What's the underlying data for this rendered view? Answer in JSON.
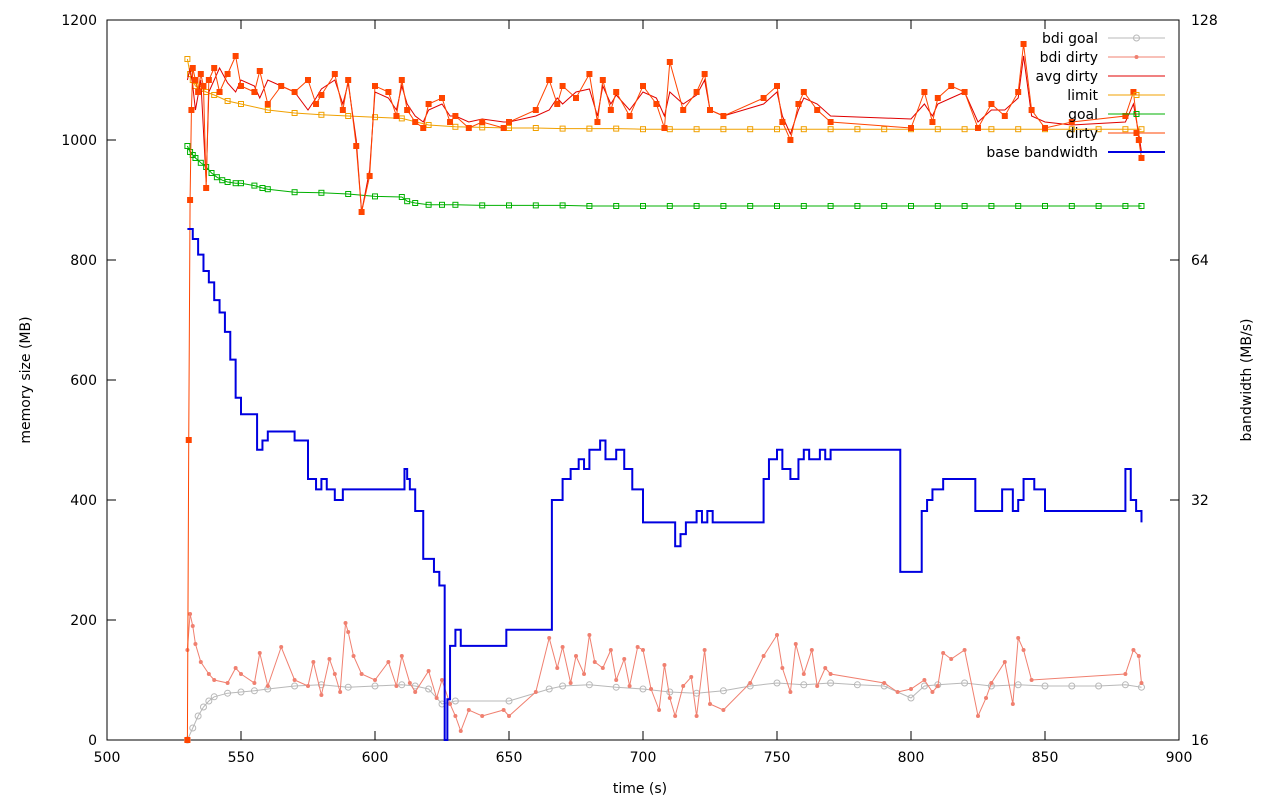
{
  "chart_data": {
    "type": "line",
    "xlabel": "time (s)",
    "ylabel": "memory size (MB)",
    "y2label": "bandwidth (MB/s)",
    "xlim": [
      500,
      900
    ],
    "ylim": [
      0,
      1200
    ],
    "y2lim": [
      16,
      128
    ],
    "y2scale": "log2",
    "xticks": [
      500,
      550,
      600,
      650,
      700,
      750,
      800,
      850,
      900
    ],
    "yticks": [
      0,
      200,
      400,
      600,
      800,
      1000,
      1200
    ],
    "y2ticks": [
      16,
      32,
      64,
      128
    ],
    "legend_position": "top-right",
    "series": [
      {
        "name": "bdi goal",
        "color": "#b8b8b8",
        "marker": "circle",
        "x": [
          530,
          532,
          534,
          536,
          538,
          540,
          545,
          550,
          555,
          560,
          570,
          580,
          590,
          600,
          610,
          615,
          620,
          625,
          630,
          650,
          665,
          670,
          680,
          690,
          700,
          710,
          720,
          730,
          740,
          750,
          760,
          770,
          780,
          790,
          800,
          805,
          810,
          820,
          830,
          840,
          850,
          860,
          870,
          880,
          886
        ],
        "y": [
          0,
          20,
          40,
          55,
          65,
          72,
          78,
          80,
          82,
          85,
          90,
          92,
          88,
          90,
          92,
          90,
          85,
          60,
          65,
          65,
          85,
          90,
          92,
          88,
          85,
          80,
          78,
          82,
          90,
          95,
          92,
          95,
          92,
          90,
          70,
          90,
          92,
          95,
          90,
          92,
          90,
          90,
          90,
          92,
          88
        ]
      },
      {
        "name": "bdi dirty",
        "color": "#f08070",
        "marker": "dot",
        "x": [
          530,
          531,
          532,
          533,
          535,
          538,
          540,
          545,
          548,
          550,
          555,
          557,
          560,
          565,
          570,
          575,
          577,
          580,
          583,
          585,
          587,
          589,
          590,
          592,
          595,
          600,
          605,
          608,
          610,
          613,
          615,
          620,
          623,
          625,
          628,
          630,
          632,
          635,
          640,
          648,
          650,
          660,
          665,
          668,
          670,
          673,
          675,
          678,
          680,
          682,
          685,
          688,
          690,
          693,
          695,
          698,
          700,
          703,
          706,
          708,
          710,
          712,
          715,
          718,
          720,
          723,
          725,
          730,
          740,
          745,
          750,
          752,
          755,
          757,
          760,
          763,
          765,
          768,
          770,
          790,
          795,
          800,
          805,
          808,
          810,
          812,
          815,
          820,
          825,
          828,
          830,
          835,
          838,
          840,
          842,
          845,
          880,
          883,
          885,
          886
        ],
        "y": [
          150,
          210,
          190,
          160,
          130,
          110,
          100,
          95,
          120,
          110,
          95,
          145,
          90,
          155,
          100,
          90,
          130,
          75,
          135,
          110,
          80,
          195,
          180,
          140,
          110,
          100,
          130,
          90,
          140,
          95,
          80,
          115,
          70,
          100,
          60,
          40,
          15,
          50,
          40,
          50,
          40,
          80,
          170,
          120,
          155,
          95,
          140,
          110,
          175,
          130,
          120,
          150,
          100,
          135,
          90,
          155,
          150,
          85,
          50,
          125,
          70,
          40,
          90,
          105,
          40,
          150,
          60,
          50,
          95,
          140,
          175,
          120,
          80,
          160,
          110,
          150,
          90,
          120,
          110,
          95,
          80,
          85,
          100,
          80,
          90,
          145,
          135,
          150,
          40,
          70,
          95,
          130,
          60,
          170,
          150,
          100,
          110,
          150,
          140,
          95
        ]
      },
      {
        "name": "avg dirty",
        "color": "#e00000",
        "marker": "none",
        "x": [
          530,
          531,
          532,
          533,
          535,
          537,
          538,
          540,
          542,
          545,
          548,
          550,
          555,
          557,
          560,
          565,
          570,
          575,
          578,
          580,
          585,
          588,
          590,
          593,
          595,
          598,
          600,
          605,
          608,
          610,
          612,
          615,
          618,
          620,
          625,
          628,
          630,
          635,
          640,
          648,
          650,
          660,
          665,
          668,
          670,
          675,
          680,
          683,
          685,
          688,
          690,
          695,
          700,
          705,
          708,
          710,
          715,
          720,
          723,
          725,
          730,
          745,
          750,
          752,
          755,
          758,
          760,
          765,
          770,
          800,
          805,
          808,
          810,
          815,
          820,
          825,
          830,
          835,
          840,
          842,
          845,
          850,
          860,
          880,
          883,
          885,
          886
        ],
        "y": [
          1100,
          1120,
          1090,
          1050,
          1100,
          930,
          1080,
          1100,
          1120,
          1095,
          1080,
          1100,
          1090,
          1070,
          1100,
          1090,
          1080,
          1050,
          1070,
          1085,
          1100,
          1060,
          1095,
          1000,
          880,
          950,
          1080,
          1070,
          1050,
          1090,
          1060,
          1040,
          1030,
          1050,
          1060,
          1040,
          1040,
          1030,
          1035,
          1030,
          1030,
          1040,
          1050,
          1070,
          1060,
          1080,
          1085,
          1040,
          1090,
          1060,
          1075,
          1050,
          1080,
          1070,
          1040,
          1080,
          1060,
          1075,
          1100,
          1050,
          1040,
          1060,
          1080,
          1040,
          1010,
          1050,
          1070,
          1060,
          1040,
          1035,
          1060,
          1040,
          1060,
          1070,
          1080,
          1030,
          1050,
          1050,
          1070,
          1140,
          1040,
          1030,
          1025,
          1030,
          1060,
          1010,
          980
        ]
      },
      {
        "name": "limit",
        "color": "#f0a000",
        "marker": "square-open",
        "x": [
          530,
          531,
          532,
          533,
          535,
          537,
          540,
          545,
          550,
          560,
          570,
          580,
          590,
          600,
          610,
          620,
          630,
          640,
          650,
          660,
          670,
          680,
          690,
          700,
          710,
          720,
          730,
          740,
          750,
          760,
          770,
          780,
          790,
          800,
          810,
          820,
          830,
          840,
          850,
          860,
          870,
          880,
          886
        ],
        "y": [
          1135,
          1110,
          1100,
          1090,
          1085,
          1080,
          1075,
          1065,
          1060,
          1050,
          1045,
          1042,
          1040,
          1038,
          1036,
          1025,
          1022,
          1021,
          1020,
          1020,
          1019,
          1019,
          1019,
          1018,
          1018,
          1018,
          1018,
          1018,
          1018,
          1018,
          1018,
          1018,
          1018,
          1018,
          1018,
          1018,
          1018,
          1018,
          1018,
          1018,
          1018,
          1018,
          1018
        ]
      },
      {
        "name": "goal",
        "color": "#00b000",
        "marker": "square-open",
        "x": [
          530,
          531,
          532,
          533,
          535,
          537,
          539,
          541,
          543,
          545,
          548,
          550,
          555,
          558,
          560,
          570,
          580,
          590,
          600,
          610,
          612,
          615,
          620,
          625,
          630,
          640,
          650,
          660,
          670,
          680,
          690,
          700,
          710,
          720,
          730,
          740,
          750,
          760,
          770,
          780,
          790,
          800,
          810,
          820,
          830,
          840,
          850,
          860,
          870,
          880,
          886
        ],
        "y": [
          990,
          980,
          975,
          970,
          962,
          955,
          945,
          938,
          933,
          930,
          928,
          928,
          924,
          920,
          918,
          913,
          912,
          910,
          906,
          905,
          898,
          895,
          892,
          892,
          892,
          891,
          891,
          891,
          891,
          890,
          890,
          890,
          890,
          890,
          890,
          890,
          890,
          890,
          890,
          890,
          890,
          890,
          890,
          890,
          890,
          890,
          890,
          890,
          890,
          890,
          890
        ]
      },
      {
        "name": "dirty",
        "color": "#ff4500",
        "marker": "square-filled",
        "x": [
          530,
          530.5,
          531,
          531.5,
          532,
          533,
          534,
          535,
          536,
          537,
          538,
          540,
          542,
          545,
          548,
          550,
          555,
          557,
          560,
          565,
          570,
          575,
          578,
          580,
          585,
          588,
          590,
          593,
          595,
          598,
          600,
          605,
          608,
          610,
          612,
          615,
          618,
          620,
          625,
          628,
          630,
          635,
          640,
          648,
          650,
          660,
          665,
          668,
          670,
          675,
          680,
          683,
          685,
          688,
          690,
          695,
          700,
          705,
          708,
          710,
          715,
          720,
          723,
          725,
          730,
          745,
          750,
          752,
          755,
          758,
          760,
          765,
          770,
          800,
          805,
          808,
          810,
          815,
          820,
          825,
          830,
          835,
          840,
          842,
          845,
          850,
          860,
          880,
          883,
          885,
          886
        ],
        "y": [
          0,
          500,
          900,
          1050,
          1120,
          1100,
          1080,
          1110,
          1090,
          920,
          1100,
          1120,
          1080,
          1110,
          1140,
          1090,
          1080,
          1115,
          1060,
          1090,
          1080,
          1100,
          1060,
          1075,
          1110,
          1050,
          1100,
          990,
          880,
          940,
          1090,
          1080,
          1040,
          1100,
          1050,
          1030,
          1020,
          1060,
          1070,
          1030,
          1040,
          1020,
          1030,
          1020,
          1030,
          1050,
          1100,
          1060,
          1090,
          1070,
          1110,
          1030,
          1100,
          1050,
          1080,
          1040,
          1090,
          1060,
          1020,
          1130,
          1050,
          1080,
          1110,
          1050,
          1040,
          1070,
          1090,
          1030,
          1000,
          1060,
          1080,
          1050,
          1030,
          1020,
          1080,
          1030,
          1070,
          1090,
          1080,
          1020,
          1060,
          1040,
          1080,
          1160,
          1050,
          1020,
          1030,
          1040,
          1080,
          1000,
          970
        ]
      },
      {
        "name": "base bandwidth",
        "color": "#0000e0",
        "marker": "none",
        "axis": "y2",
        "x": [
          530,
          532,
          534,
          536,
          538,
          540,
          542,
          544,
          546,
          548,
          550,
          553,
          556,
          558,
          560,
          565,
          570,
          575,
          578,
          580,
          582,
          585,
          588,
          590,
          595,
          600,
          605,
          610,
          611,
          612,
          613,
          615,
          618,
          620,
          622,
          624,
          626,
          627,
          628,
          630,
          632,
          635,
          640,
          648,
          649,
          650,
          660,
          664,
          666,
          670,
          673,
          676,
          678,
          680,
          684,
          686,
          690,
          693,
          696,
          700,
          705,
          710,
          712,
          714,
          716,
          720,
          722,
          724,
          726,
          730,
          740,
          745,
          747,
          750,
          752,
          755,
          758,
          760,
          762,
          766,
          768,
          770,
          780,
          790,
          796,
          800,
          804,
          806,
          808,
          812,
          820,
          824,
          830,
          834,
          838,
          840,
          842,
          846,
          850,
          860,
          870,
          878,
          880,
          882,
          884,
          886
        ],
        "y": [
          70,
          68,
          65,
          62,
          60,
          57,
          55,
          52,
          48,
          43,
          41,
          41,
          37,
          38,
          39,
          39,
          38,
          34,
          33,
          34,
          33,
          32,
          33,
          33,
          33,
          33,
          33,
          33,
          35,
          34,
          33,
          31,
          27,
          27,
          26,
          25,
          16,
          18,
          21,
          22,
          21,
          21,
          21,
          21,
          22,
          22,
          22,
          22,
          32,
          34,
          35,
          36,
          35,
          37,
          38,
          36,
          37,
          35,
          33,
          30,
          30,
          30,
          28,
          29,
          30,
          31,
          30,
          31,
          30,
          30,
          30,
          34,
          36,
          37,
          35,
          34,
          36,
          37,
          36,
          37,
          36,
          37,
          37,
          37,
          26,
          26,
          31,
          32,
          33,
          34,
          34,
          31,
          31,
          33,
          31,
          32,
          34,
          33,
          31,
          31,
          31,
          31,
          35,
          32,
          31,
          30
        ]
      }
    ]
  }
}
